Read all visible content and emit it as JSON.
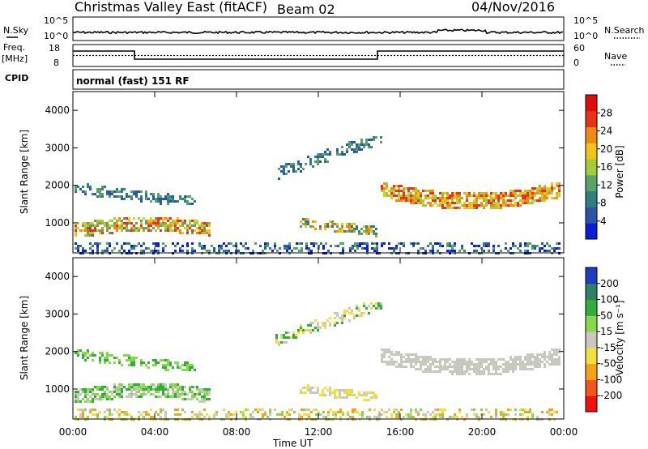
{
  "header": {
    "title": "Christmas Valley East (fitACF)",
    "beam": "Beam 02",
    "date": "04/Nov/2016"
  },
  "top_panels": {
    "nsky_label": "N.Sky",
    "nsearch_label": "N.Search",
    "freq_label_1": "Freq.",
    "freq_label_2": "[MHz]",
    "nave_label": "Nave",
    "cpid_label": "CPID",
    "mode_text": "normal (fast) 151 RF",
    "noise_left_ticks": [
      "10^5",
      "10^0"
    ],
    "noise_right_ticks": [
      "10^5",
      "10^0"
    ],
    "freq_left_ticks": [
      "18",
      "8"
    ],
    "freq_right_ticks": [
      "60",
      "0"
    ]
  },
  "colors": {
    "power_scale": [
      "#0b1cd6",
      "#2b53a8",
      "#2e7f80",
      "#57a36a",
      "#a2cc3a",
      "#f2c31b",
      "#f08a12",
      "#e8331a",
      "#e00b0b"
    ],
    "velocity_scale": [
      "#f20f0f",
      "#f3561a",
      "#f6a11b",
      "#f3e03a",
      "#c8c8c0",
      "#87d84a",
      "#2fae3a",
      "#2f7f66",
      "#1e3cc0"
    ]
  },
  "chart_data": [
    {
      "type": "heatmap",
      "name": "power",
      "ylabel": "Slant Range [km]",
      "x_ticks": [
        "00:00",
        "04:00",
        "08:00",
        "12:00",
        "16:00",
        "20:00",
        "00:00"
      ],
      "y_ticks": [
        "1000",
        "2000",
        "3000",
        "4000"
      ],
      "ylim": [
        200,
        4500
      ],
      "colorbar_label": "Power [dB]",
      "colorbar_ticks": [
        "4",
        "8",
        "12",
        "16",
        "20",
        "24",
        "28"
      ],
      "colorbar_range": [
        0,
        32
      ]
    },
    {
      "type": "heatmap",
      "name": "velocity",
      "ylabel": "Slant Range [km]",
      "xlabel": "Time UT",
      "x_ticks": [
        "00:00",
        "04:00",
        "08:00",
        "12:00",
        "16:00",
        "20:00",
        "00:00"
      ],
      "y_ticks": [
        "1000",
        "2000",
        "3000",
        "4000"
      ],
      "ylim": [
        200,
        4500
      ],
      "colorbar_label": "Velocity [m s⁻¹]",
      "colorbar_ticks": [
        "-200",
        "-100",
        "-50",
        "-15",
        "15",
        "50",
        "100",
        "200"
      ]
    }
  ]
}
